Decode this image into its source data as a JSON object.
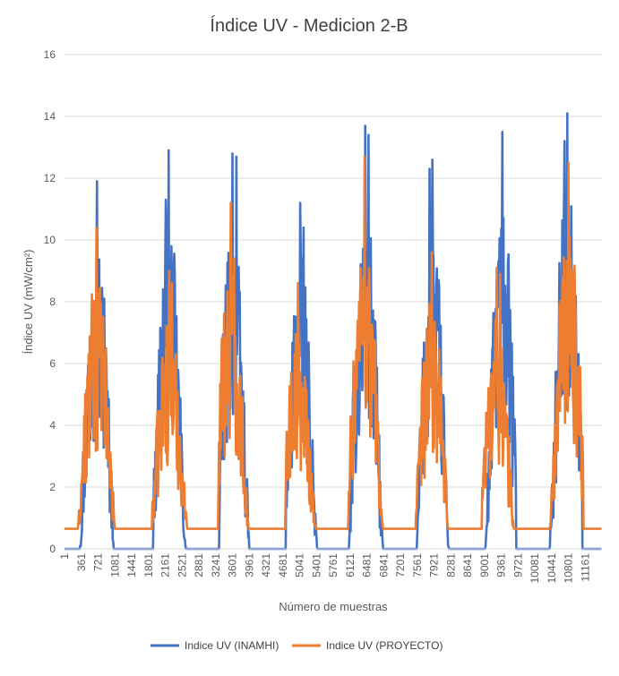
{
  "chart_data": {
    "type": "line",
    "title": "Índice UV - Medicion 2-B",
    "xlabel": "Número de muestras",
    "ylabel": "Índice UV (mW/cm²)",
    "ylim": [
      0,
      16
    ],
    "yticks": [
      0,
      2,
      4,
      6,
      8,
      10,
      12,
      14,
      16
    ],
    "xlim": [
      1,
      11520
    ],
    "xticks": [
      "1",
      "361",
      "721",
      "1081",
      "1441",
      "1801",
      "2161",
      "2521",
      "2881",
      "3241",
      "3601",
      "3961",
      "4321",
      "4681",
      "5041",
      "5401",
      "5761",
      "6121",
      "6481",
      "6841",
      "7201",
      "7561",
      "7921",
      "8281",
      "8641",
      "9001",
      "9361",
      "9721",
      "10081",
      "10441",
      "10801",
      "11161"
    ],
    "grid": "horizontal",
    "legend": "bottom",
    "series": [
      {
        "name": "Indice UV (INAMHI)",
        "color": "#4472C4",
        "baseline": 0.0,
        "days": [
          {
            "start": 300,
            "end": 1050,
            "peak": 11.9,
            "center": 700,
            "spike_x": 850,
            "spike_y": 8.1
          },
          {
            "start": 1900,
            "end": 2640,
            "peak": 12.9,
            "center": 2230,
            "spike_x": 2170,
            "spike_y": 11.3
          },
          {
            "start": 3320,
            "end": 4050,
            "peak": 12.8,
            "center": 3600,
            "spike_x": 3680,
            "spike_y": 12.7
          },
          {
            "start": 4750,
            "end": 5480,
            "peak": 11.2,
            "center": 5050,
            "spike_x": 5120,
            "spike_y": 10.4
          },
          {
            "start": 6100,
            "end": 6850,
            "peak": 13.7,
            "center": 6450,
            "spike_x": 6520,
            "spike_y": 13.4
          },
          {
            "start": 7550,
            "end": 8240,
            "peak": 12.6,
            "center": 7890,
            "spike_x": 7820,
            "spike_y": 12.3
          },
          {
            "start": 8960,
            "end": 9680,
            "peak": 13.5,
            "center": 9380,
            "spike_x": 9300,
            "spike_y": 9.3
          },
          {
            "start": 10330,
            "end": 11100,
            "peak": 14.1,
            "center": 10780,
            "spike_x": 10720,
            "spike_y": 13.2
          }
        ]
      },
      {
        "name": "Indice UV (PROYECTO)",
        "color": "#ED7D31",
        "baseline": 0.65,
        "days": [
          {
            "start": 280,
            "end": 1080,
            "peak": 10.4,
            "center": 690,
            "spike_x": 770,
            "spike_y": 6.2
          },
          {
            "start": 1880,
            "end": 2660,
            "peak": 9.0,
            "center": 2240,
            "spike_x": 2310,
            "spike_y": 8.6
          },
          {
            "start": 3300,
            "end": 4070,
            "peak": 11.2,
            "center": 3560,
            "spike_x": 3640,
            "spike_y": 9.4
          },
          {
            "start": 4730,
            "end": 5500,
            "peak": 8.6,
            "center": 5000,
            "spike_x": 4930,
            "spike_y": 6.3
          },
          {
            "start": 6080,
            "end": 6870,
            "peak": 12.7,
            "center": 6430,
            "spike_x": 6360,
            "spike_y": 7.8
          },
          {
            "start": 7530,
            "end": 8260,
            "peak": 9.6,
            "center": 7870,
            "spike_x": 7940,
            "spike_y": 6.5
          },
          {
            "start": 8950,
            "end": 9700,
            "peak": 9.1,
            "center": 9260,
            "spike_x": 9340,
            "spike_y": 8.9
          },
          {
            "start": 10320,
            "end": 11120,
            "peak": 12.5,
            "center": 10800,
            "spike_x": 10880,
            "spike_y": 9.0
          }
        ]
      }
    ]
  }
}
